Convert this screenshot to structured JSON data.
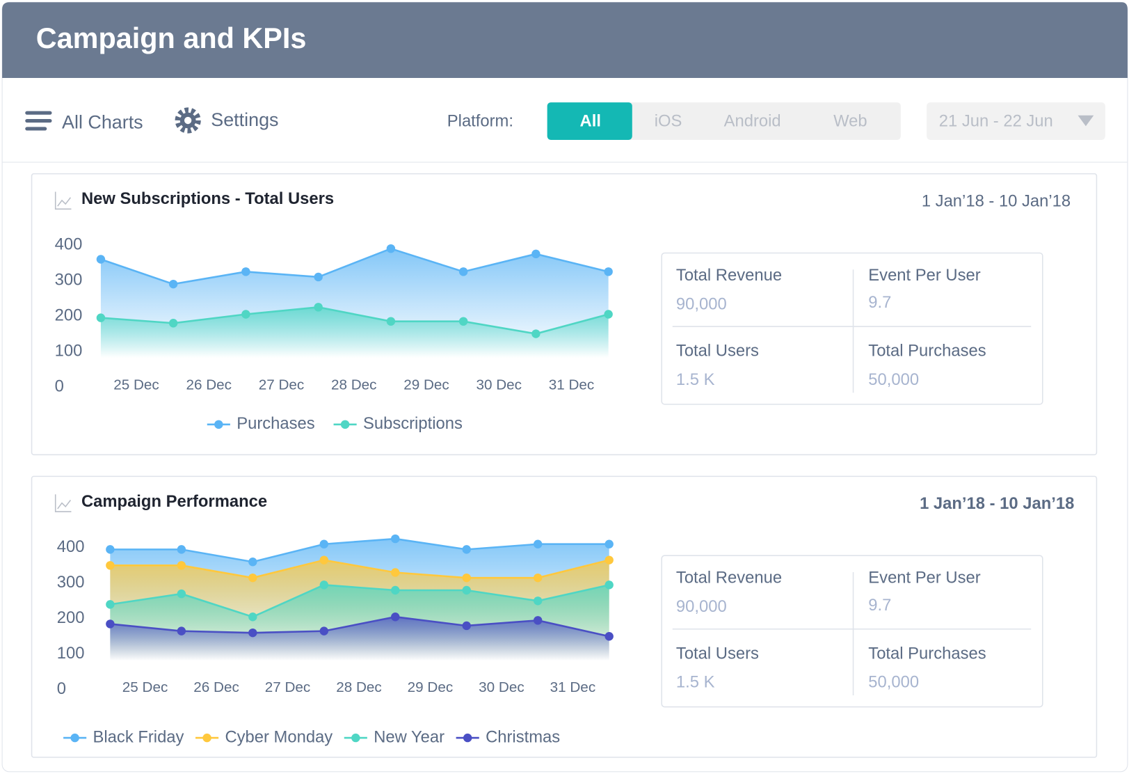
{
  "header": {
    "title": "Campaign and KPIs"
  },
  "toolbar": {
    "all_charts": "All Charts",
    "settings": "Settings",
    "platform_label": "Platform:",
    "platforms": [
      "All",
      "iOS",
      "Android",
      "Web"
    ],
    "selected_platform": 0,
    "date_filter": "21 Jun - 22 Jun"
  },
  "panels": [
    {
      "date_range": "1 Jan’18 - 10 Jan’18",
      "kpis": [
        {
          "label": "Total Revenue",
          "value": "90,000"
        },
        {
          "label": "Event Per User",
          "value": "9.7"
        },
        {
          "label": "Total Users",
          "value": "1.5 K"
        },
        {
          "label": "Total Purchases",
          "value": "50,000"
        }
      ]
    },
    {
      "date_range": "1 Jan’18 - 10 Jan’18",
      "kpis": [
        {
          "label": "Total Revenue",
          "value": "90,000"
        },
        {
          "label": "Event Per User",
          "value": "9.7"
        },
        {
          "label": "Total Users",
          "value": "1.5 K"
        },
        {
          "label": "Total Purchases",
          "value": "50,000"
        }
      ]
    }
  ],
  "chart_data": [
    {
      "type": "line",
      "title": "New Subscriptions - Total Users",
      "categories": [
        "25 Dec",
        "26 Dec",
        "27 Dec",
        "28 Dec",
        "29 Dec",
        "30 Dec",
        "31 Dec",
        null
      ],
      "series": [
        {
          "name": "Purchases",
          "color": "#5ab4f5",
          "values": [
            360,
            290,
            325,
            310,
            390,
            325,
            375,
            325
          ]
        },
        {
          "name": "Subscriptions",
          "color": "#4fd6c4",
          "values": [
            195,
            180,
            205,
            225,
            185,
            185,
            150,
            205
          ]
        }
      ],
      "ylim": [
        0,
        400
      ],
      "yticks": [
        0,
        100,
        200,
        300,
        400
      ],
      "area": true
    },
    {
      "type": "line",
      "title": "Campaign Performance",
      "categories": [
        "25 Dec",
        "26 Dec",
        "27 Dec",
        "28 Dec",
        "29 Dec",
        "30 Dec",
        "31 Dec",
        null
      ],
      "series": [
        {
          "name": "Black Friday",
          "color": "#5ab4f5",
          "values": [
            395,
            395,
            360,
            410,
            425,
            395,
            410,
            410
          ]
        },
        {
          "name": "Cyber Monday",
          "color": "#ffc83d",
          "values": [
            350,
            350,
            315,
            365,
            330,
            315,
            315,
            365
          ]
        },
        {
          "name": "New Year",
          "color": "#4fd6c4",
          "values": [
            240,
            270,
            205,
            295,
            280,
            280,
            250,
            295
          ]
        },
        {
          "name": "Christmas",
          "color": "#4a4fc4",
          "values": [
            185,
            165,
            160,
            165,
            205,
            180,
            195,
            150
          ]
        }
      ],
      "ylim": [
        0,
        400
      ],
      "yticks": [
        0,
        100,
        200,
        300,
        400
      ],
      "area": true
    }
  ]
}
